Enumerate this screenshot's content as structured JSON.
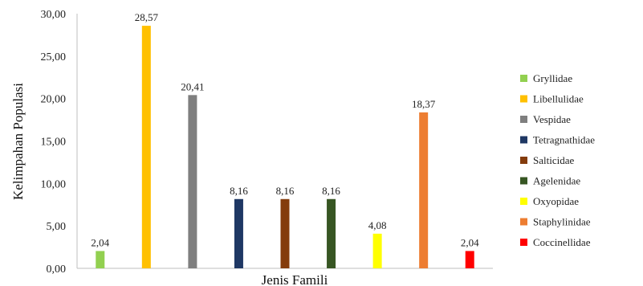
{
  "chart_data": {
    "type": "bar",
    "title": "",
    "xlabel": "Jenis Famili",
    "ylabel": "Kelimpahan Populasi",
    "ylim": [
      0,
      30
    ],
    "y_ticks": [
      "0,00",
      "5,00",
      "10,00",
      "15,00",
      "20,00",
      "25,00",
      "30,00"
    ],
    "grid": false,
    "legend_position": "right",
    "series": [
      {
        "name": "Gryllidae",
        "value": 2.04,
        "label": "2,04",
        "color": "#92D050"
      },
      {
        "name": "Libellulidae",
        "value": 28.57,
        "label": "28,57",
        "color": "#FFC000"
      },
      {
        "name": "Vespidae",
        "value": 20.41,
        "label": "20,41",
        "color": "#7F7F7F"
      },
      {
        "name": "Tetragnathidae",
        "value": 8.16,
        "label": "8,16",
        "color": "#1F3864"
      },
      {
        "name": "Salticidae",
        "value": 8.16,
        "label": "8,16",
        "color": "#843C0C"
      },
      {
        "name": "Agelenidae",
        "value": 8.16,
        "label": "8,16",
        "color": "#375623"
      },
      {
        "name": "Oxyopidae",
        "value": 4.08,
        "label": "4,08",
        "color": "#FFFF00"
      },
      {
        "name": "Staphylinidae",
        "value": 18.37,
        "label": "18,37",
        "color": "#ED7D31"
      },
      {
        "name": "Coccinellidae",
        "value": 2.04,
        "label": "2,04",
        "color": "#FF0000"
      }
    ]
  }
}
